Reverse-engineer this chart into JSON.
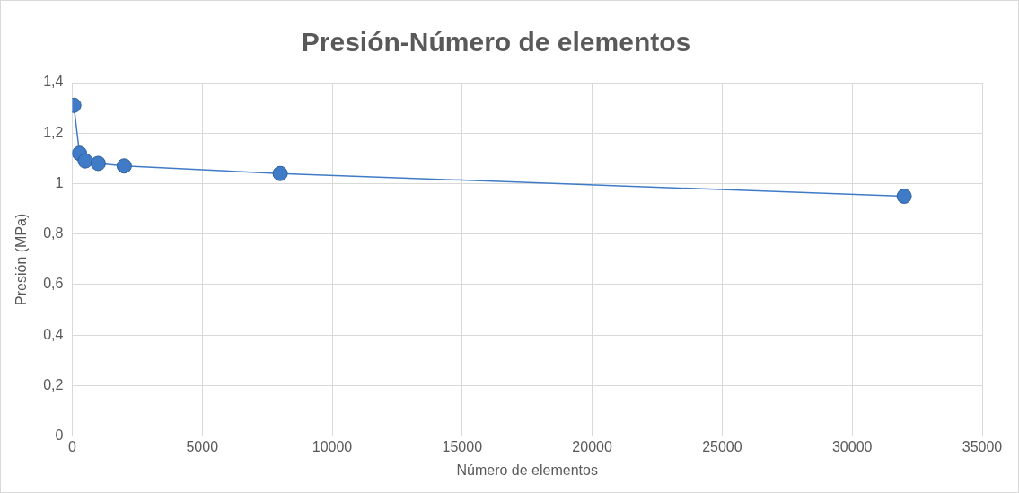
{
  "chart_data": {
    "type": "scatter",
    "title": "Presión-Número de elementos",
    "xlabel": "Número de elementos",
    "ylabel": "Presión (MPa)",
    "x": [
      60,
      280,
      500,
      1000,
      2000,
      8000,
      32000
    ],
    "series": [
      {
        "type": "line",
        "color": "#3f7bc6",
        "values": [
          1.31,
          1.12,
          1.09,
          1.08,
          1.07,
          1.04,
          0.95
        ]
      }
    ],
    "xlim": [
      0,
      35000
    ],
    "xticks": [
      0,
      5000,
      10000,
      15000,
      20000,
      25000,
      30000,
      35000
    ],
    "ylim": [
      0,
      1.4
    ],
    "yticks": [
      {
        "value": 0,
        "label": "0"
      },
      {
        "value": 0.2,
        "label": "0,2"
      },
      {
        "value": 0.4,
        "label": "0,4"
      },
      {
        "value": 0.6,
        "label": "0,6"
      },
      {
        "value": 0.8,
        "label": "0,8"
      },
      {
        "value": 1,
        "label": "1"
      },
      {
        "value": 1.2,
        "label": "1,2"
      },
      {
        "value": 1.4,
        "label": "1,4"
      }
    ],
    "grid": true,
    "marker": "circle",
    "line_style": "solid"
  }
}
